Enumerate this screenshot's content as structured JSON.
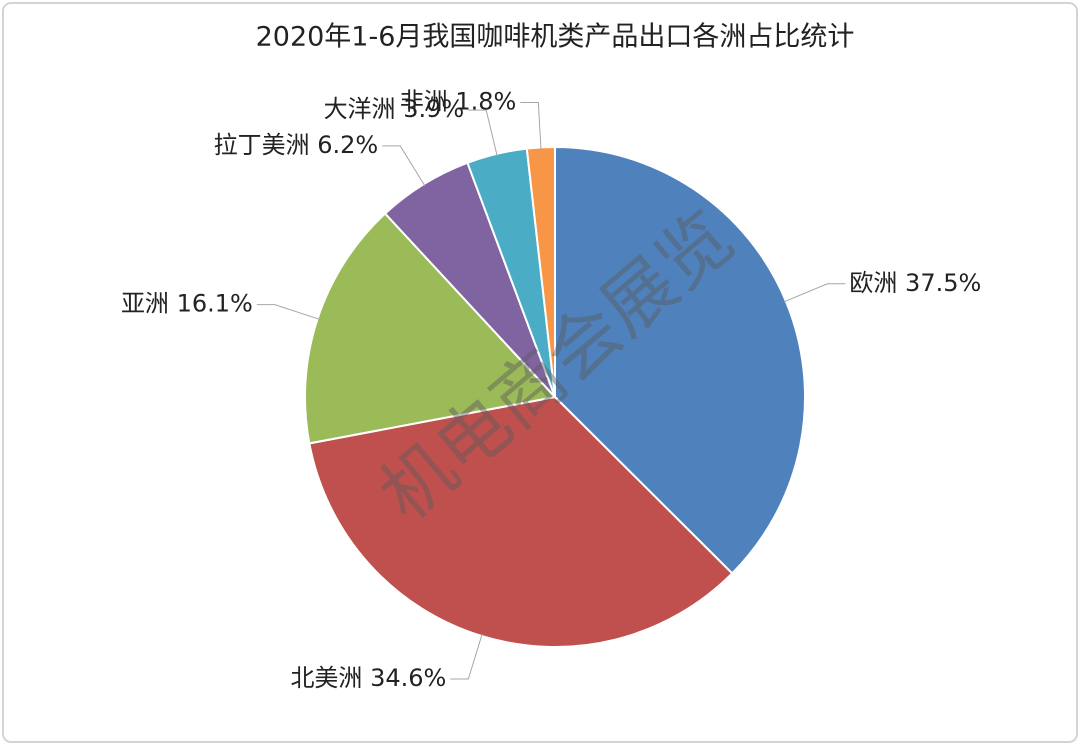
{
  "chart_data": {
    "type": "pie",
    "title": "2020年1-6月我国咖啡机类产品出口各洲占比统计",
    "categories": [
      "欧洲",
      "北美洲",
      "亚洲",
      "拉丁美洲",
      "大洋洲",
      "非洲"
    ],
    "values": [
      37.5,
      34.6,
      16.1,
      6.2,
      3.9,
      1.8
    ],
    "value_labels": [
      "37.5%",
      "34.6%",
      "16.1%",
      "6.2%",
      "3.9%",
      "1.8%"
    ],
    "colors": [
      "#4f81bd",
      "#c0504d",
      "#9bbb59",
      "#8064a2",
      "#4bacc6",
      "#f79646"
    ]
  },
  "watermark": "机电商会展览"
}
